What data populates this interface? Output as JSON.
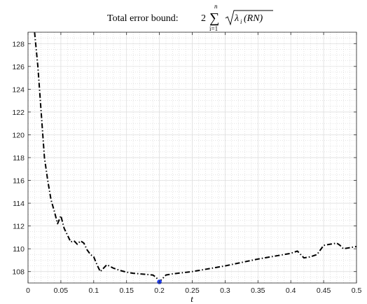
{
  "chart_data": {
    "type": "line",
    "title": "Total error bound:",
    "title_formula": {
      "coefficient": "2",
      "sum_symbol": "∑",
      "sum_upper": "n",
      "sum_lower": "i=1",
      "radicand": "λ",
      "radicand_sub": "i",
      "radicand_arg": "(RN)"
    },
    "xlabel": "t",
    "ylabel": "",
    "xlim": [
      0,
      0.5
    ],
    "ylim": [
      107,
      129
    ],
    "x_ticks": [
      0,
      0.05,
      0.1,
      0.15,
      0.2,
      0.25,
      0.3,
      0.35,
      0.4,
      0.45,
      0.5
    ],
    "x_tick_labels": [
      "0",
      "0.05",
      "0.1",
      "0.15",
      "0.2",
      "0.25",
      "0.3",
      "0.35",
      "0.4",
      "0.45",
      "0.5"
    ],
    "y_ticks": [
      108,
      110,
      112,
      114,
      116,
      118,
      120,
      122,
      124,
      126,
      128
    ],
    "y_tick_labels": [
      "108",
      "110",
      "112",
      "114",
      "116",
      "118",
      "120",
      "122",
      "124",
      "126",
      "128"
    ],
    "grid": true,
    "minor_grid": true,
    "series": [
      {
        "line_style": "dash-dot",
        "color": "#000000",
        "x": [
          0.01,
          0.015,
          0.02,
          0.025,
          0.03,
          0.035,
          0.04,
          0.045,
          0.05,
          0.055,
          0.06,
          0.065,
          0.07,
          0.075,
          0.08,
          0.085,
          0.09,
          0.095,
          0.1,
          0.105,
          0.11,
          0.115,
          0.12,
          0.13,
          0.14,
          0.15,
          0.16,
          0.17,
          0.18,
          0.19,
          0.195,
          0.2,
          0.205,
          0.21,
          0.22,
          0.25,
          0.3,
          0.35,
          0.4,
          0.41,
          0.415,
          0.42,
          0.43,
          0.44,
          0.445,
          0.45,
          0.46,
          0.47,
          0.475,
          0.48,
          0.49,
          0.5
        ],
        "y": [
          129.0,
          126.0,
          122.0,
          118.0,
          116.0,
          114.3,
          113.3,
          112.2,
          112.9,
          111.8,
          111.2,
          110.6,
          110.7,
          110.4,
          110.7,
          110.5,
          109.9,
          109.5,
          109.3,
          108.6,
          108.0,
          108.3,
          108.6,
          108.3,
          108.1,
          107.95,
          107.85,
          107.8,
          107.75,
          107.7,
          107.5,
          107.1,
          107.4,
          107.7,
          107.8,
          108.0,
          108.5,
          109.1,
          109.6,
          109.8,
          109.5,
          109.2,
          109.3,
          109.5,
          109.9,
          110.3,
          110.4,
          110.5,
          110.3,
          110.0,
          110.1,
          110.2
        ]
      }
    ],
    "highlight_point": {
      "x": 0.2,
      "y": 107.1,
      "color": "#1f3fff"
    }
  }
}
